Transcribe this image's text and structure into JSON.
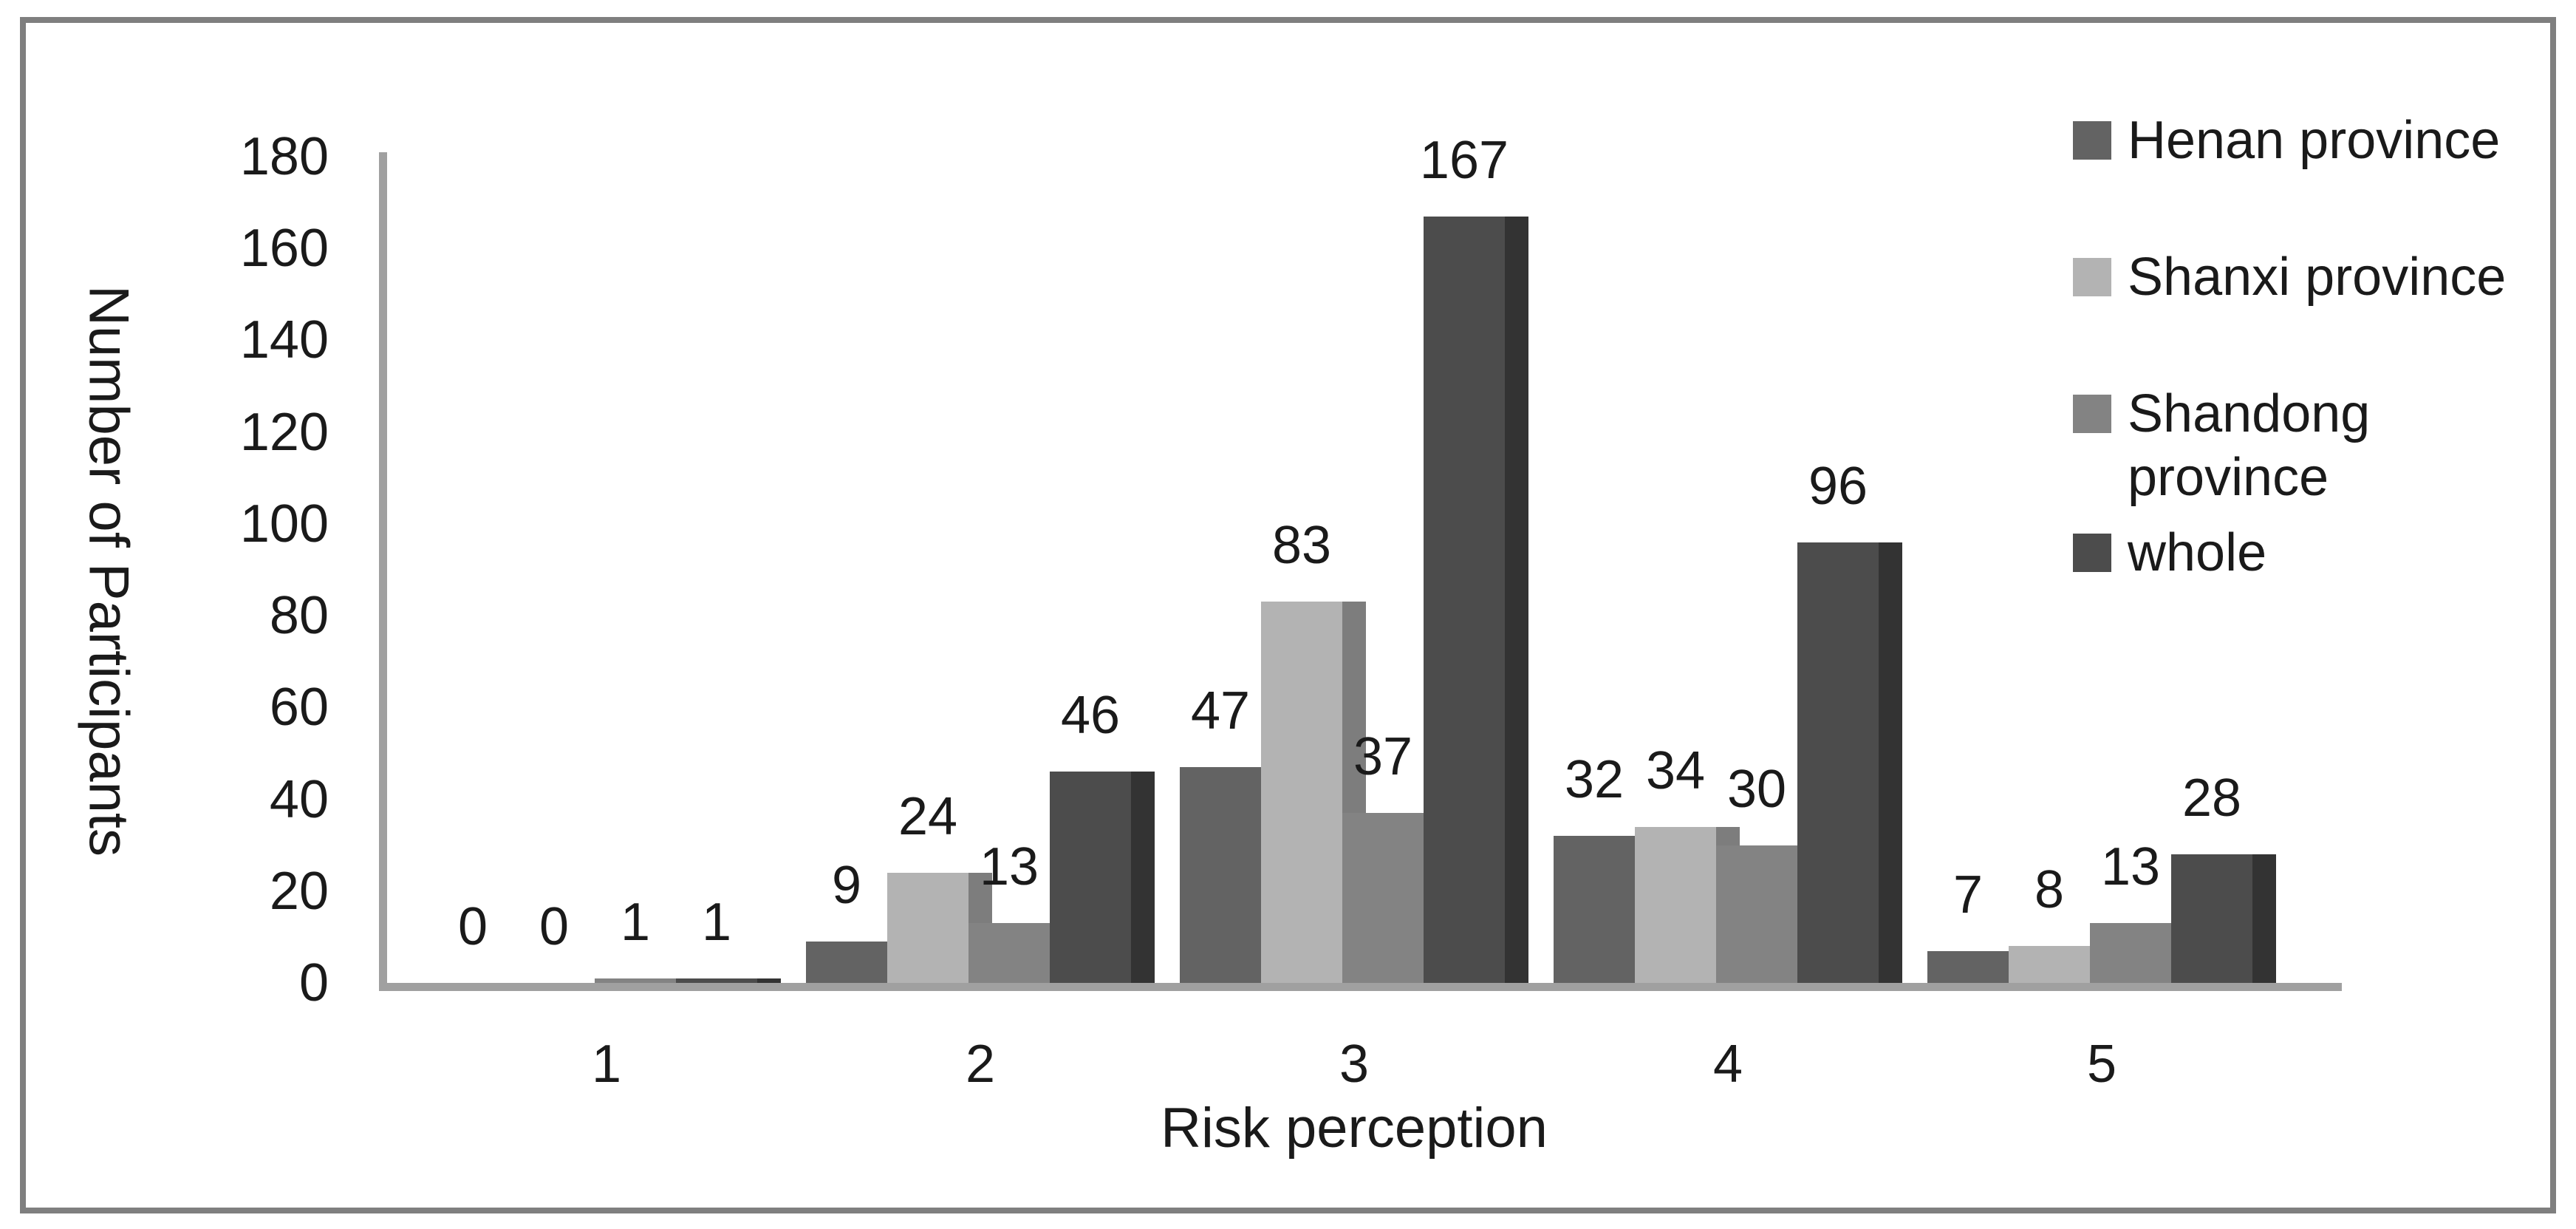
{
  "figure": {
    "background": "#ffffff",
    "frame_color": "#7f7f7f"
  },
  "chart_data": {
    "type": "bar",
    "title": "",
    "xlabel": "Risk perception",
    "ylabel": "Number of Participants",
    "categories": [
      "1",
      "2",
      "3",
      "4",
      "5"
    ],
    "series": [
      {
        "name": "Henan province",
        "color": "#636363",
        "side_color": "#454545",
        "values": [
          0,
          9,
          47,
          32,
          7
        ]
      },
      {
        "name": "Shanxi province",
        "color": "#b3b3b3",
        "side_color": "#7d7d7d",
        "values": [
          0,
          24,
          83,
          34,
          8
        ]
      },
      {
        "name": "Shandong province",
        "color": "#838383",
        "side_color": "#5c5c5c",
        "values": [
          1,
          13,
          37,
          30,
          13
        ]
      },
      {
        "name": "whole",
        "color": "#4c4c4c",
        "side_color": "#333333",
        "values": [
          1,
          46,
          167,
          96,
          28
        ]
      }
    ],
    "ylim": [
      0,
      180
    ],
    "yticks": [
      0,
      20,
      40,
      60,
      80,
      100,
      120,
      140,
      160,
      180
    ],
    "data_labels": "outside-end",
    "grid": false,
    "legend_position": "top-right",
    "axis_color": "#a0a0a0",
    "text_color": "#1a1a1a"
  }
}
